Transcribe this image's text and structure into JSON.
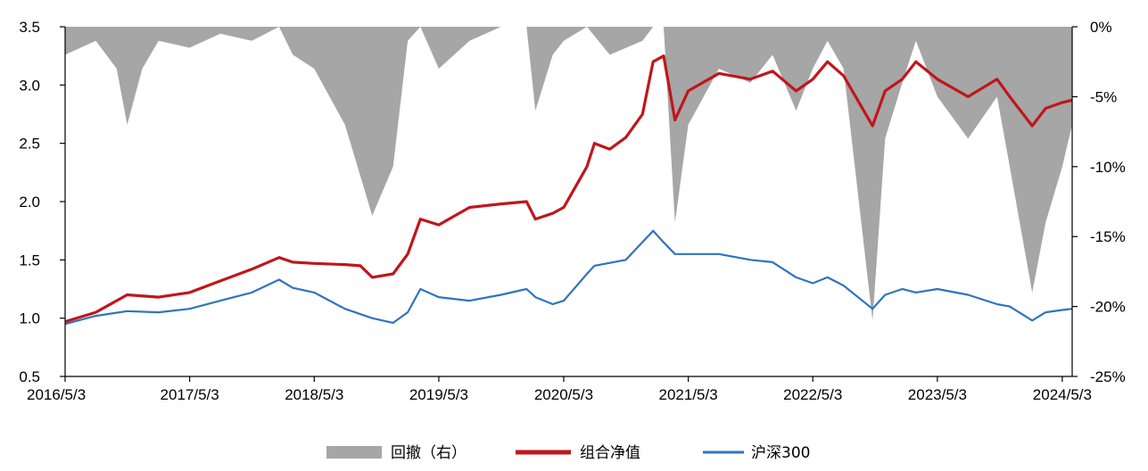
{
  "chart_data": {
    "type": "line",
    "title": "",
    "x_ticks": [
      "2016/5/3",
      "2017/5/3",
      "2018/5/3",
      "2019/5/3",
      "2020/5/3",
      "2021/5/3",
      "2022/5/3",
      "2023/5/3",
      "2024/5/3"
    ],
    "y_left": {
      "ylim": [
        0.5,
        3.5
      ],
      "ticks": [
        "0.5",
        "1.0",
        "1.5",
        "2.0",
        "2.5",
        "3.0",
        "3.5"
      ]
    },
    "y_right": {
      "ylim": [
        -25,
        0
      ],
      "ticks": [
        "-25%",
        "-20%",
        "-15%",
        "-10%",
        "-5%",
        "0%"
      ]
    },
    "x_range": [
      "2016/5/3",
      "2024/6/1"
    ],
    "series": [
      {
        "name": "组合净值",
        "axis": "left",
        "color": "#c0161c",
        "x": [
          "2016/5/3",
          "2016/8/1",
          "2016/11/1",
          "2017/2/1",
          "2017/5/3",
          "2017/8/1",
          "2017/11/1",
          "2018/1/20",
          "2018/3/1",
          "2018/5/3",
          "2018/8/1",
          "2018/9/15",
          "2018/10/20",
          "2018/12/20",
          "2019/2/1",
          "2019/3/10",
          "2019/5/3",
          "2019/8/1",
          "2019/11/1",
          "2020/1/15",
          "2020/2/10",
          "2020/4/1",
          "2020/5/3",
          "2020/7/10",
          "2020/8/1",
          "2020/9/15",
          "2020/11/1",
          "2020/12/20",
          "2021/1/20",
          "2021/2/20",
          "2021/3/25",
          "2021/5/3",
          "2021/8/1",
          "2021/11/1",
          "2022/1/5",
          "2022/3/15",
          "2022/5/3",
          "2022/6/15",
          "2022/8/1",
          "2022/10/25",
          "2022/12/1",
          "2023/1/20",
          "2023/3/1",
          "2023/5/3",
          "2023/8/1",
          "2023/10/25",
          "2023/12/1",
          "2024/2/5",
          "2024/3/15",
          "2024/5/3",
          "2024/6/1"
        ],
        "values": [
          0.97,
          1.05,
          1.2,
          1.18,
          1.22,
          1.32,
          1.42,
          1.52,
          1.48,
          1.47,
          1.46,
          1.45,
          1.35,
          1.38,
          1.55,
          1.85,
          1.8,
          1.95,
          1.98,
          2.0,
          1.85,
          1.9,
          1.95,
          2.3,
          2.5,
          2.45,
          2.55,
          2.75,
          3.2,
          3.25,
          2.7,
          2.95,
          3.1,
          3.05,
          3.12,
          2.95,
          3.05,
          3.2,
          3.08,
          2.65,
          2.95,
          3.05,
          3.2,
          3.05,
          2.9,
          3.05,
          2.9,
          2.65,
          2.8,
          2.85,
          2.87
        ]
      },
      {
        "name": "沪深300",
        "axis": "left",
        "color": "#2e74c0",
        "x": [
          "2016/5/3",
          "2016/8/1",
          "2016/11/1",
          "2017/2/1",
          "2017/5/3",
          "2017/8/1",
          "2017/11/1",
          "2018/1/20",
          "2018/3/1",
          "2018/5/3",
          "2018/8/1",
          "2018/10/20",
          "2018/12/20",
          "2019/2/1",
          "2019/3/10",
          "2019/5/3",
          "2019/8/1",
          "2019/11/1",
          "2020/1/15",
          "2020/2/10",
          "2020/4/1",
          "2020/5/3",
          "2020/7/10",
          "2020/8/1",
          "2020/11/1",
          "2021/1/20",
          "2021/2/20",
          "2021/3/25",
          "2021/5/3",
          "2021/8/1",
          "2021/11/1",
          "2022/1/5",
          "2022/3/15",
          "2022/5/3",
          "2022/6/15",
          "2022/8/1",
          "2022/10/25",
          "2022/12/1",
          "2023/1/20",
          "2023/3/1",
          "2023/5/3",
          "2023/8/1",
          "2023/10/25",
          "2023/12/1",
          "2024/2/5",
          "2024/3/15",
          "2024/5/3",
          "2024/6/1"
        ],
        "values": [
          0.95,
          1.02,
          1.06,
          1.05,
          1.08,
          1.15,
          1.22,
          1.33,
          1.26,
          1.22,
          1.08,
          1.0,
          0.96,
          1.05,
          1.25,
          1.18,
          1.15,
          1.2,
          1.25,
          1.18,
          1.12,
          1.15,
          1.38,
          1.45,
          1.5,
          1.75,
          1.65,
          1.55,
          1.55,
          1.55,
          1.5,
          1.48,
          1.35,
          1.3,
          1.35,
          1.28,
          1.08,
          1.2,
          1.25,
          1.22,
          1.25,
          1.2,
          1.12,
          1.1,
          0.98,
          1.05,
          1.07,
          1.08
        ]
      },
      {
        "name": "回撤（右）",
        "axis": "right",
        "type": "area",
        "color": "#a6a6a6",
        "x": [
          "2016/5/3",
          "2016/8/1",
          "2016/10/1",
          "2016/11/1",
          "2016/12/15",
          "2017/2/1",
          "2017/5/3",
          "2017/8/1",
          "2017/11/1",
          "2018/1/20",
          "2018/3/1",
          "2018/5/3",
          "2018/8/1",
          "2018/10/20",
          "2018/12/20",
          "2019/2/1",
          "2019/3/10",
          "2019/5/3",
          "2019/8/1",
          "2019/11/1",
          "2020/1/15",
          "2020/2/10",
          "2020/4/1",
          "2020/5/3",
          "2020/7/10",
          "2020/9/15",
          "2020/12/20",
          "2021/1/20",
          "2021/2/20",
          "2021/3/25",
          "2021/5/3",
          "2021/8/1",
          "2021/11/1",
          "2022/1/5",
          "2022/3/15",
          "2022/5/3",
          "2022/6/15",
          "2022/8/1",
          "2022/10/25",
          "2022/12/1",
          "2023/1/20",
          "2023/3/1",
          "2023/5/3",
          "2023/8/1",
          "2023/10/25",
          "2023/12/1",
          "2024/2/5",
          "2024/3/15",
          "2024/5/3",
          "2024/6/1"
        ],
        "values": [
          -2,
          -1,
          -3,
          -7,
          -3,
          -1,
          -1.5,
          -0.5,
          -1,
          0,
          -2,
          -3,
          -7,
          -13.5,
          -10,
          -1,
          0,
          -3,
          -1,
          0,
          0,
          -6,
          -2,
          -1,
          0,
          -2,
          -1,
          0,
          0,
          -14,
          -7,
          -3,
          -4,
          -2,
          -6,
          -3,
          -1,
          -3,
          -21,
          -8,
          -4,
          -1,
          -5,
          -8,
          -5,
          -10,
          -19,
          -14,
          -10,
          -7
        ]
      }
    ],
    "legend": {
      "position": "bottom",
      "items": [
        {
          "label": "回撤（右）",
          "kind": "swatch",
          "color": "#a6a6a6"
        },
        {
          "label": "组合净值",
          "kind": "thick-line",
          "color": "#c0161c"
        },
        {
          "label": "沪深300",
          "kind": "line",
          "color": "#2e74c0"
        }
      ]
    },
    "grid": false
  }
}
